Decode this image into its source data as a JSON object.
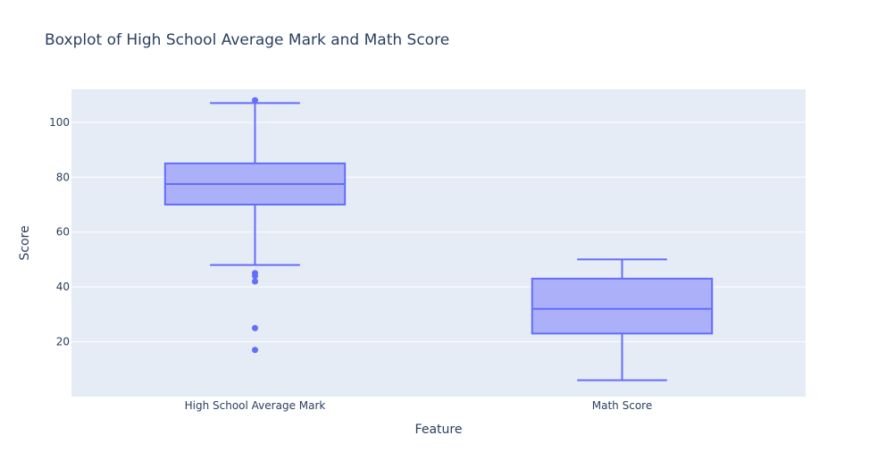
{
  "chart_data": {
    "type": "box",
    "title": "Boxplot of High School Average Mark and Math Score",
    "xlabel": "Feature",
    "ylabel": "Score",
    "ylim": [
      0,
      112
    ],
    "yticks": [
      20,
      40,
      60,
      80,
      100
    ],
    "grid": true,
    "colors": {
      "plot_bg": "#e5ecf6",
      "grid": "#ffffff",
      "box_line": "#636efa",
      "box_fill": "#a4aaf9",
      "text": "#2a3f5f"
    },
    "categories": [
      "High School Average Mark",
      "Math Score"
    ],
    "boxes": [
      {
        "category": "High School Average Mark",
        "lowerfence": 48,
        "q1": 70,
        "median": 77.5,
        "q3": 85,
        "upperfence": 107,
        "outliers": [
          108,
          45,
          44,
          42,
          25,
          17
        ]
      },
      {
        "category": "Math Score",
        "lowerfence": 6,
        "q1": 23,
        "median": 32,
        "q3": 43,
        "upperfence": 50,
        "outliers": []
      }
    ]
  }
}
